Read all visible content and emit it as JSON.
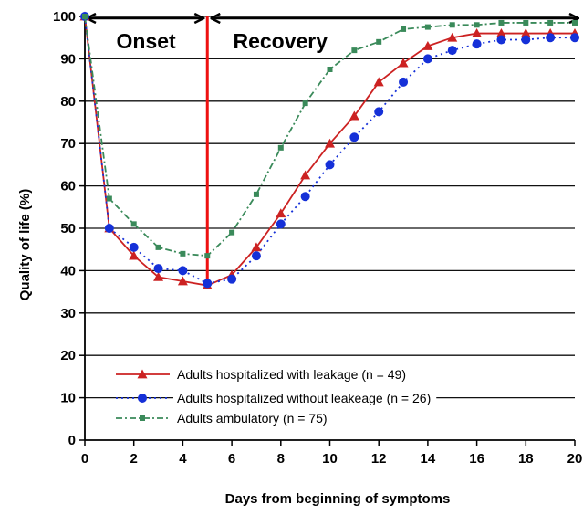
{
  "chart_data": {
    "type": "line",
    "xlabel": "Days from beginning of symptoms",
    "ylabel": "Quality of life (%)",
    "xlim": [
      0,
      20
    ],
    "ylim": [
      0,
      100
    ],
    "x_ticks": [
      0,
      2,
      4,
      6,
      8,
      10,
      12,
      14,
      16,
      18,
      20
    ],
    "y_ticks": [
      0,
      10,
      20,
      30,
      40,
      50,
      60,
      70,
      80,
      90,
      100
    ],
    "grid": "horizontal",
    "legend_position": "bottom-left",
    "annotations": {
      "onset": "Onset",
      "recovery": "Recovery",
      "divider_x": 5
    },
    "series": [
      {
        "name": "Adults hospitalized with leakage (n = 49)",
        "color": "#cc2222",
        "line_style": "solid",
        "marker": "triangle",
        "x": [
          0,
          1,
          2,
          3,
          4,
          5,
          6,
          7,
          8,
          9,
          10,
          11,
          12,
          13,
          14,
          15,
          16,
          17,
          18,
          19,
          20
        ],
        "y": [
          100,
          50,
          43.5,
          38.5,
          37.5,
          36.5,
          39,
          45.5,
          53.5,
          62.5,
          70,
          76.5,
          84.5,
          89,
          93,
          95,
          96,
          96,
          96,
          96,
          96
        ]
      },
      {
        "name": "Adults hospitalized without leakeage (n = 26)",
        "color": "#1530d8",
        "line_style": "dotted",
        "marker": "circle",
        "x": [
          0,
          1,
          2,
          3,
          4,
          5,
          6,
          7,
          8,
          9,
          10,
          11,
          12,
          13,
          14,
          15,
          16,
          17,
          18,
          19,
          20
        ],
        "y": [
          100,
          50,
          45.5,
          40.5,
          40,
          37,
          38,
          43.5,
          51,
          57.5,
          65,
          71.5,
          77.5,
          84.5,
          90,
          92,
          93.5,
          94.5,
          94.5,
          95,
          95
        ]
      },
      {
        "name": "Adults ambulatory (n = 75)",
        "color": "#3a8a5a",
        "line_style": "dashdot",
        "marker": "square",
        "x": [
          0,
          1,
          2,
          3,
          4,
          5,
          6,
          7,
          8,
          9,
          10,
          11,
          12,
          13,
          14,
          15,
          16,
          17,
          18,
          19,
          20
        ],
        "y": [
          100,
          57,
          51,
          45.5,
          44,
          43.5,
          49,
          58,
          69,
          79.5,
          87.5,
          92,
          94,
          97,
          97.5,
          98,
          98,
          98.5,
          98.5,
          98.5,
          98.5
        ]
      }
    ]
  }
}
